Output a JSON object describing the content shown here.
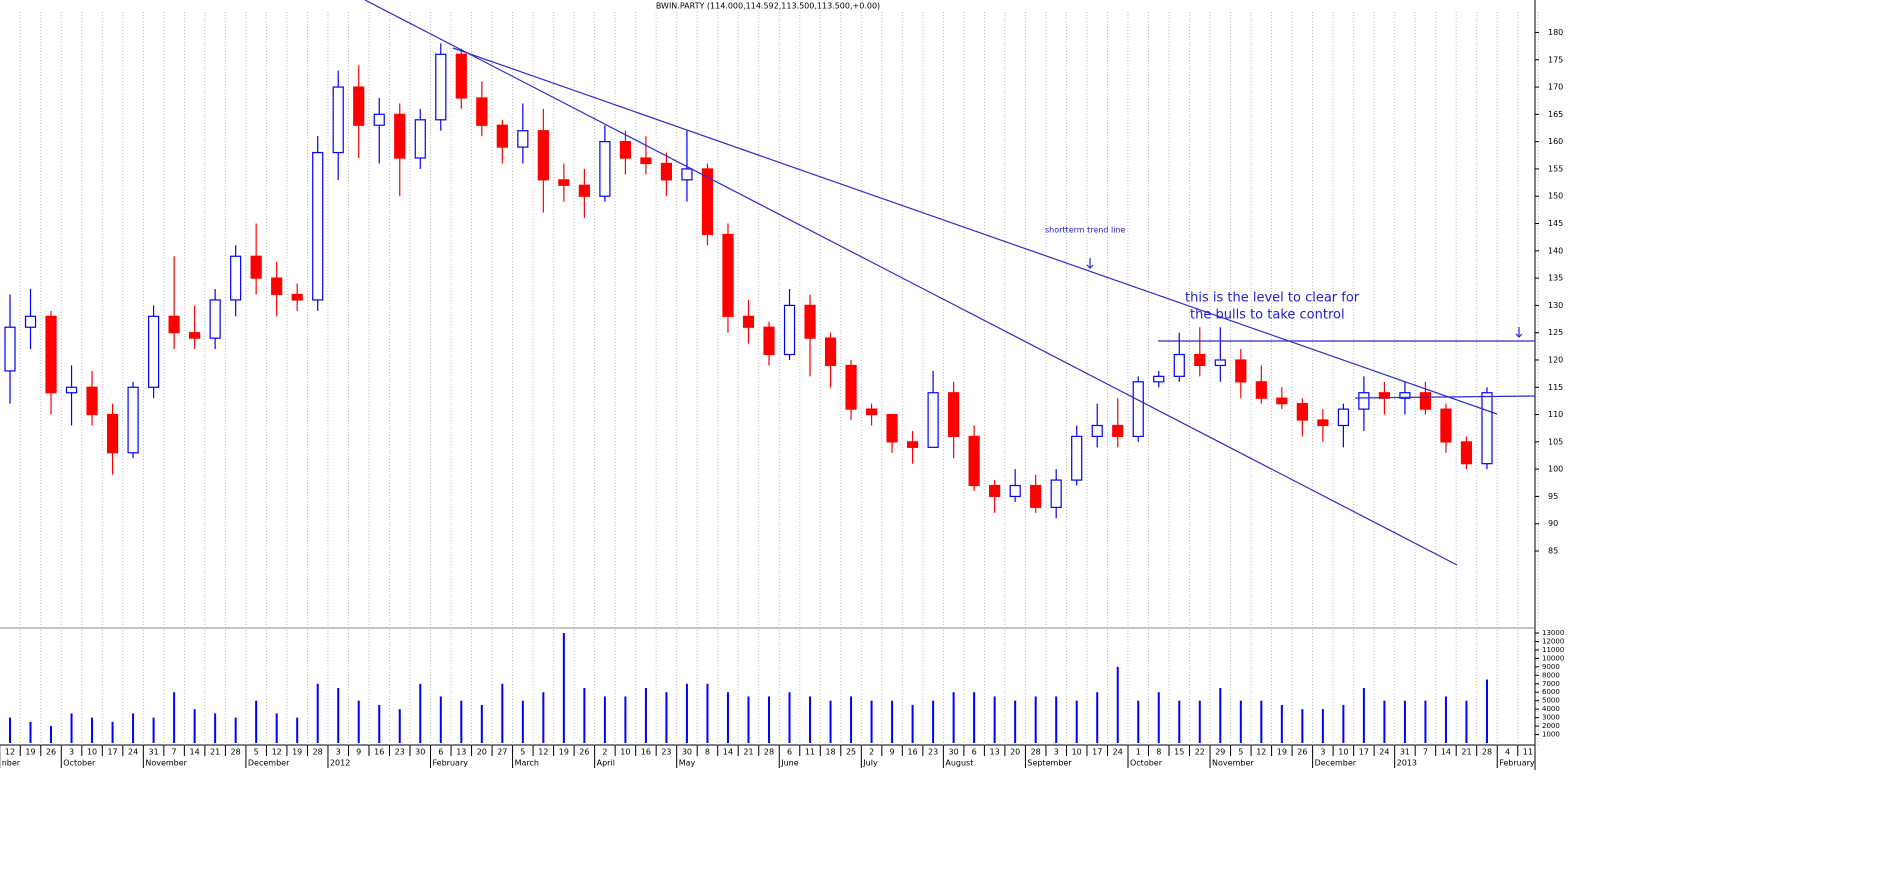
{
  "chart_data": {
    "type": "candlestick",
    "title": "BWIN.PARTY (114.000,114.592,113.500,113.500,+0.00)",
    "categories": [
      "12",
      "19",
      "26",
      "3",
      "10",
      "17",
      "24",
      "31",
      "7",
      "14",
      "21",
      "28",
      "5",
      "12",
      "19",
      "28",
      "3",
      "9",
      "16",
      "23",
      "30",
      "6",
      "13",
      "20",
      "27",
      "5",
      "12",
      "19",
      "26",
      "2",
      "10",
      "16",
      "23",
      "30",
      "8",
      "14",
      "21",
      "28",
      "6",
      "11",
      "18",
      "25",
      "2",
      "9",
      "16",
      "23",
      "30",
      "6",
      "13",
      "20",
      "28",
      "3",
      "10",
      "17",
      "24",
      "1",
      "8",
      "15",
      "22",
      "29",
      "5",
      "12",
      "19",
      "26",
      "3",
      "10",
      "17",
      "24",
      "31",
      "7",
      "14",
      "21",
      "28",
      "4",
      "11"
    ],
    "month_labels": [
      "nber",
      null,
      null,
      "October",
      null,
      null,
      null,
      "November",
      null,
      null,
      null,
      null,
      "December",
      null,
      null,
      null,
      "2012",
      null,
      null,
      null,
      null,
      "February",
      null,
      null,
      null,
      "March",
      null,
      null,
      null,
      "April",
      null,
      null,
      null,
      "May",
      null,
      null,
      null,
      null,
      "June",
      null,
      null,
      null,
      "July",
      null,
      null,
      null,
      "August",
      null,
      null,
      null,
      "September",
      null,
      null,
      null,
      null,
      "October",
      null,
      null,
      null,
      "November",
      null,
      null,
      null,
      null,
      "December",
      null,
      null,
      null,
      "2013",
      null,
      null,
      null,
      null,
      "February",
      null
    ],
    "open": [
      118,
      126,
      128,
      114,
      115,
      110,
      103,
      115,
      128,
      125,
      124,
      131,
      139,
      135,
      132,
      131,
      158,
      170,
      163,
      165,
      157,
      164,
      176,
      168,
      163,
      159,
      162,
      153,
      152,
      150,
      160,
      157,
      156,
      153,
      155,
      143,
      128,
      126,
      121,
      130,
      124,
      119,
      111,
      110,
      105,
      104,
      114,
      106,
      97,
      95,
      97,
      93,
      98,
      106,
      108,
      106,
      116,
      117,
      121,
      119,
      120,
      116,
      113,
      112,
      109,
      108,
      111,
      114,
      113,
      114,
      111,
      105,
      101,
      null,
      null
    ],
    "high": [
      132,
      133,
      129,
      119,
      118,
      112,
      116,
      130,
      139,
      130,
      133,
      141,
      145,
      138,
      134,
      161,
      173,
      174,
      168,
      167,
      166,
      178,
      177,
      171,
      164,
      167,
      166,
      156,
      155,
      163,
      162,
      161,
      158,
      162,
      156,
      145,
      131,
      127,
      133,
      132,
      125,
      120,
      112,
      110,
      107,
      118,
      116,
      108,
      98,
      100,
      99,
      100,
      108,
      112,
      113,
      117,
      118,
      125,
      126,
      126,
      122,
      119,
      115,
      113,
      111,
      112,
      117,
      116,
      116,
      116,
      112,
      106,
      115,
      null,
      null
    ],
    "low": [
      112,
      122,
      110,
      108,
      108,
      99,
      102,
      113,
      122,
      122,
      122,
      128,
      132,
      128,
      129,
      129,
      153,
      157,
      156,
      150,
      155,
      162,
      166,
      161,
      156,
      156,
      147,
      149,
      146,
      149,
      154,
      154,
      150,
      149,
      141,
      125,
      123,
      119,
      120,
      117,
      115,
      109,
      108,
      103,
      101,
      104,
      102,
      96,
      92,
      94,
      92,
      91,
      97,
      104,
      104,
      105,
      115,
      116,
      117,
      116,
      113,
      112,
      111,
      106,
      105,
      104,
      107,
      110,
      110,
      110,
      103,
      100,
      100,
      null,
      null
    ],
    "close": [
      126,
      128,
      114,
      115,
      110,
      103,
      115,
      128,
      125,
      124,
      131,
      139,
      135,
      132,
      131,
      158,
      170,
      163,
      165,
      157,
      164,
      176,
      168,
      163,
      159,
      162,
      153,
      152,
      150,
      160,
      157,
      156,
      153,
      155,
      143,
      128,
      126,
      121,
      130,
      124,
      119,
      111,
      110,
      105,
      104,
      114,
      106,
      97,
      95,
      97,
      93,
      98,
      106,
      108,
      106,
      116,
      117,
      121,
      119,
      120,
      116,
      113,
      112,
      109,
      108,
      111,
      114,
      113,
      114,
      111,
      105,
      101,
      114,
      null,
      null
    ],
    "up_color": "#0000ff",
    "down_color": "#ff0000",
    "ylim": [
      72,
      181
    ],
    "yticks": [
      85,
      90,
      95,
      100,
      105,
      110,
      115,
      120,
      125,
      130,
      135,
      140,
      145,
      150,
      155,
      160,
      165,
      170,
      175,
      180
    ],
    "grid": true,
    "volume": {
      "values": [
        3000,
        2500,
        2000,
        3500,
        3000,
        2500,
        3500,
        3000,
        6000,
        4000,
        3500,
        3000,
        5000,
        3500,
        3000,
        7000,
        6500,
        5000,
        4500,
        4000,
        7000,
        5500,
        5000,
        4500,
        7000,
        5000,
        6000,
        13000,
        6500,
        5500,
        5500,
        6500,
        6000,
        7000,
        7000,
        6000,
        5500,
        5500,
        6000,
        5500,
        5000,
        5500,
        5000,
        5000,
        4500,
        5000,
        6000,
        6000,
        5500,
        5000,
        5500,
        5500,
        5000,
        6000,
        9000,
        5000,
        6000,
        5000,
        5000,
        6500,
        5000,
        5000,
        4500,
        4000,
        4000,
        4500,
        6500,
        5000,
        5000,
        5000,
        5500,
        5000,
        7500,
        null,
        null
      ],
      "color": "#0000ff",
      "ylim": [
        0,
        13000
      ],
      "yticks": [
        1000,
        2000,
        3000,
        4000,
        5000,
        6000,
        7000,
        8000,
        9000,
        10000,
        11000,
        12000,
        13000
      ]
    },
    "annotations": [
      "shortterm trend line",
      "this is the level to clear for",
      "the bulls to take control"
    ]
  }
}
